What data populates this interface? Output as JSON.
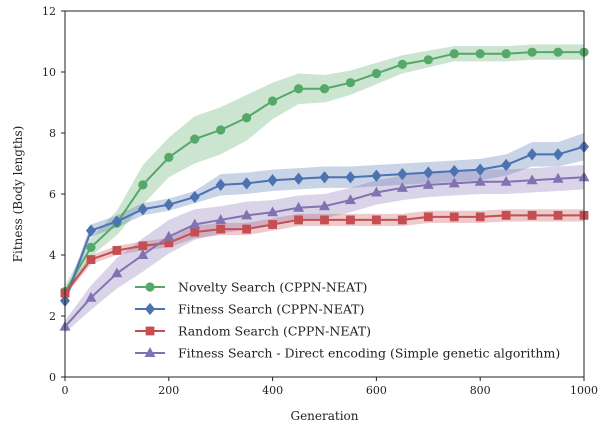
{
  "chart_data": {
    "type": "line",
    "xlabel": "Generation",
    "ylabel": "Fitness (Body lengths)",
    "xlim": [
      0,
      1000
    ],
    "ylim": [
      0,
      12
    ],
    "xticks": [
      0,
      200,
      400,
      600,
      800,
      1000
    ],
    "yticks": [
      0,
      2,
      4,
      6,
      8,
      10,
      12
    ],
    "grid": false,
    "legend_position": "bottom-center",
    "x": [
      0,
      50,
      100,
      150,
      200,
      250,
      300,
      350,
      400,
      450,
      500,
      550,
      600,
      650,
      700,
      750,
      800,
      850,
      900,
      950,
      1000
    ],
    "series": [
      {
        "name": "Novelty Search (CPPN-NEAT)",
        "marker": "circle",
        "color": "#55a868",
        "values": [
          2.8,
          4.25,
          5.05,
          6.3,
          7.2,
          7.8,
          8.1,
          8.5,
          9.05,
          9.45,
          9.45,
          9.65,
          9.95,
          10.25,
          10.4,
          10.6,
          10.6,
          10.6,
          10.65,
          10.65,
          10.65
        ],
        "band_low": [
          2.6,
          3.95,
          4.65,
          5.65,
          6.55,
          7.0,
          7.3,
          7.75,
          8.45,
          8.95,
          9.0,
          9.25,
          9.6,
          9.95,
          10.15,
          10.35,
          10.35,
          10.35,
          10.4,
          10.4,
          10.4
        ],
        "band_high": [
          3.0,
          4.55,
          5.45,
          6.95,
          7.85,
          8.55,
          8.85,
          9.25,
          9.65,
          9.95,
          9.9,
          10.05,
          10.3,
          10.55,
          10.7,
          10.85,
          10.85,
          10.85,
          10.9,
          10.9,
          10.9
        ]
      },
      {
        "name": "Fitness Search (CPPN-NEAT)",
        "marker": "diamond",
        "color": "#4c72b0",
        "values": [
          2.5,
          4.8,
          5.1,
          5.5,
          5.65,
          5.9,
          6.3,
          6.35,
          6.45,
          6.5,
          6.55,
          6.55,
          6.6,
          6.65,
          6.7,
          6.75,
          6.8,
          6.95,
          7.3,
          7.3,
          7.55
        ],
        "band_low": [
          2.35,
          4.6,
          4.9,
          5.3,
          5.45,
          5.7,
          5.95,
          6.0,
          6.1,
          6.15,
          6.2,
          6.2,
          6.25,
          6.3,
          6.35,
          6.4,
          6.45,
          6.6,
          6.9,
          6.9,
          7.1
        ],
        "band_high": [
          2.65,
          5.0,
          5.3,
          5.7,
          5.85,
          6.1,
          6.65,
          6.7,
          6.8,
          6.85,
          6.9,
          6.9,
          6.95,
          7.0,
          7.05,
          7.1,
          7.15,
          7.3,
          7.7,
          7.7,
          8.0
        ]
      },
      {
        "name": "Random Search (CPPN-NEAT)",
        "marker": "square",
        "color": "#c44e52",
        "values": [
          2.75,
          3.85,
          4.15,
          4.3,
          4.4,
          4.75,
          4.85,
          4.85,
          5.0,
          5.15,
          5.15,
          5.15,
          5.15,
          5.15,
          5.25,
          5.25,
          5.25,
          5.3,
          5.3,
          5.3,
          5.3
        ],
        "band_low": [
          2.65,
          3.7,
          4.0,
          4.15,
          4.25,
          4.55,
          4.65,
          4.65,
          4.8,
          4.95,
          4.95,
          4.95,
          4.95,
          4.95,
          5.05,
          5.05,
          5.05,
          5.1,
          5.1,
          5.1,
          5.1
        ],
        "band_high": [
          2.85,
          4.0,
          4.3,
          4.45,
          4.55,
          4.95,
          5.05,
          5.05,
          5.2,
          5.35,
          5.35,
          5.35,
          5.35,
          5.35,
          5.45,
          5.45,
          5.45,
          5.5,
          5.5,
          5.5,
          5.5
        ]
      },
      {
        "name": "Fitness Search - Direct encoding (Simple genetic algorithm)",
        "marker": "triangle",
        "color": "#8172b2",
        "values": [
          1.65,
          2.6,
          3.4,
          4.0,
          4.6,
          5.0,
          5.15,
          5.3,
          5.4,
          5.55,
          5.6,
          5.8,
          6.05,
          6.2,
          6.3,
          6.35,
          6.4,
          6.4,
          6.45,
          6.5,
          6.55
        ],
        "band_low": [
          1.45,
          2.2,
          2.9,
          3.45,
          4.05,
          4.5,
          4.7,
          4.85,
          5.0,
          5.15,
          5.2,
          5.4,
          5.65,
          5.8,
          5.9,
          5.95,
          6.0,
          6.0,
          6.05,
          6.1,
          6.15
        ],
        "band_high": [
          1.85,
          3.0,
          3.9,
          4.55,
          5.15,
          5.5,
          5.6,
          5.75,
          5.8,
          5.95,
          6.0,
          6.2,
          6.45,
          6.6,
          6.7,
          6.75,
          6.8,
          6.8,
          6.85,
          6.9,
          6.95
        ]
      }
    ]
  }
}
